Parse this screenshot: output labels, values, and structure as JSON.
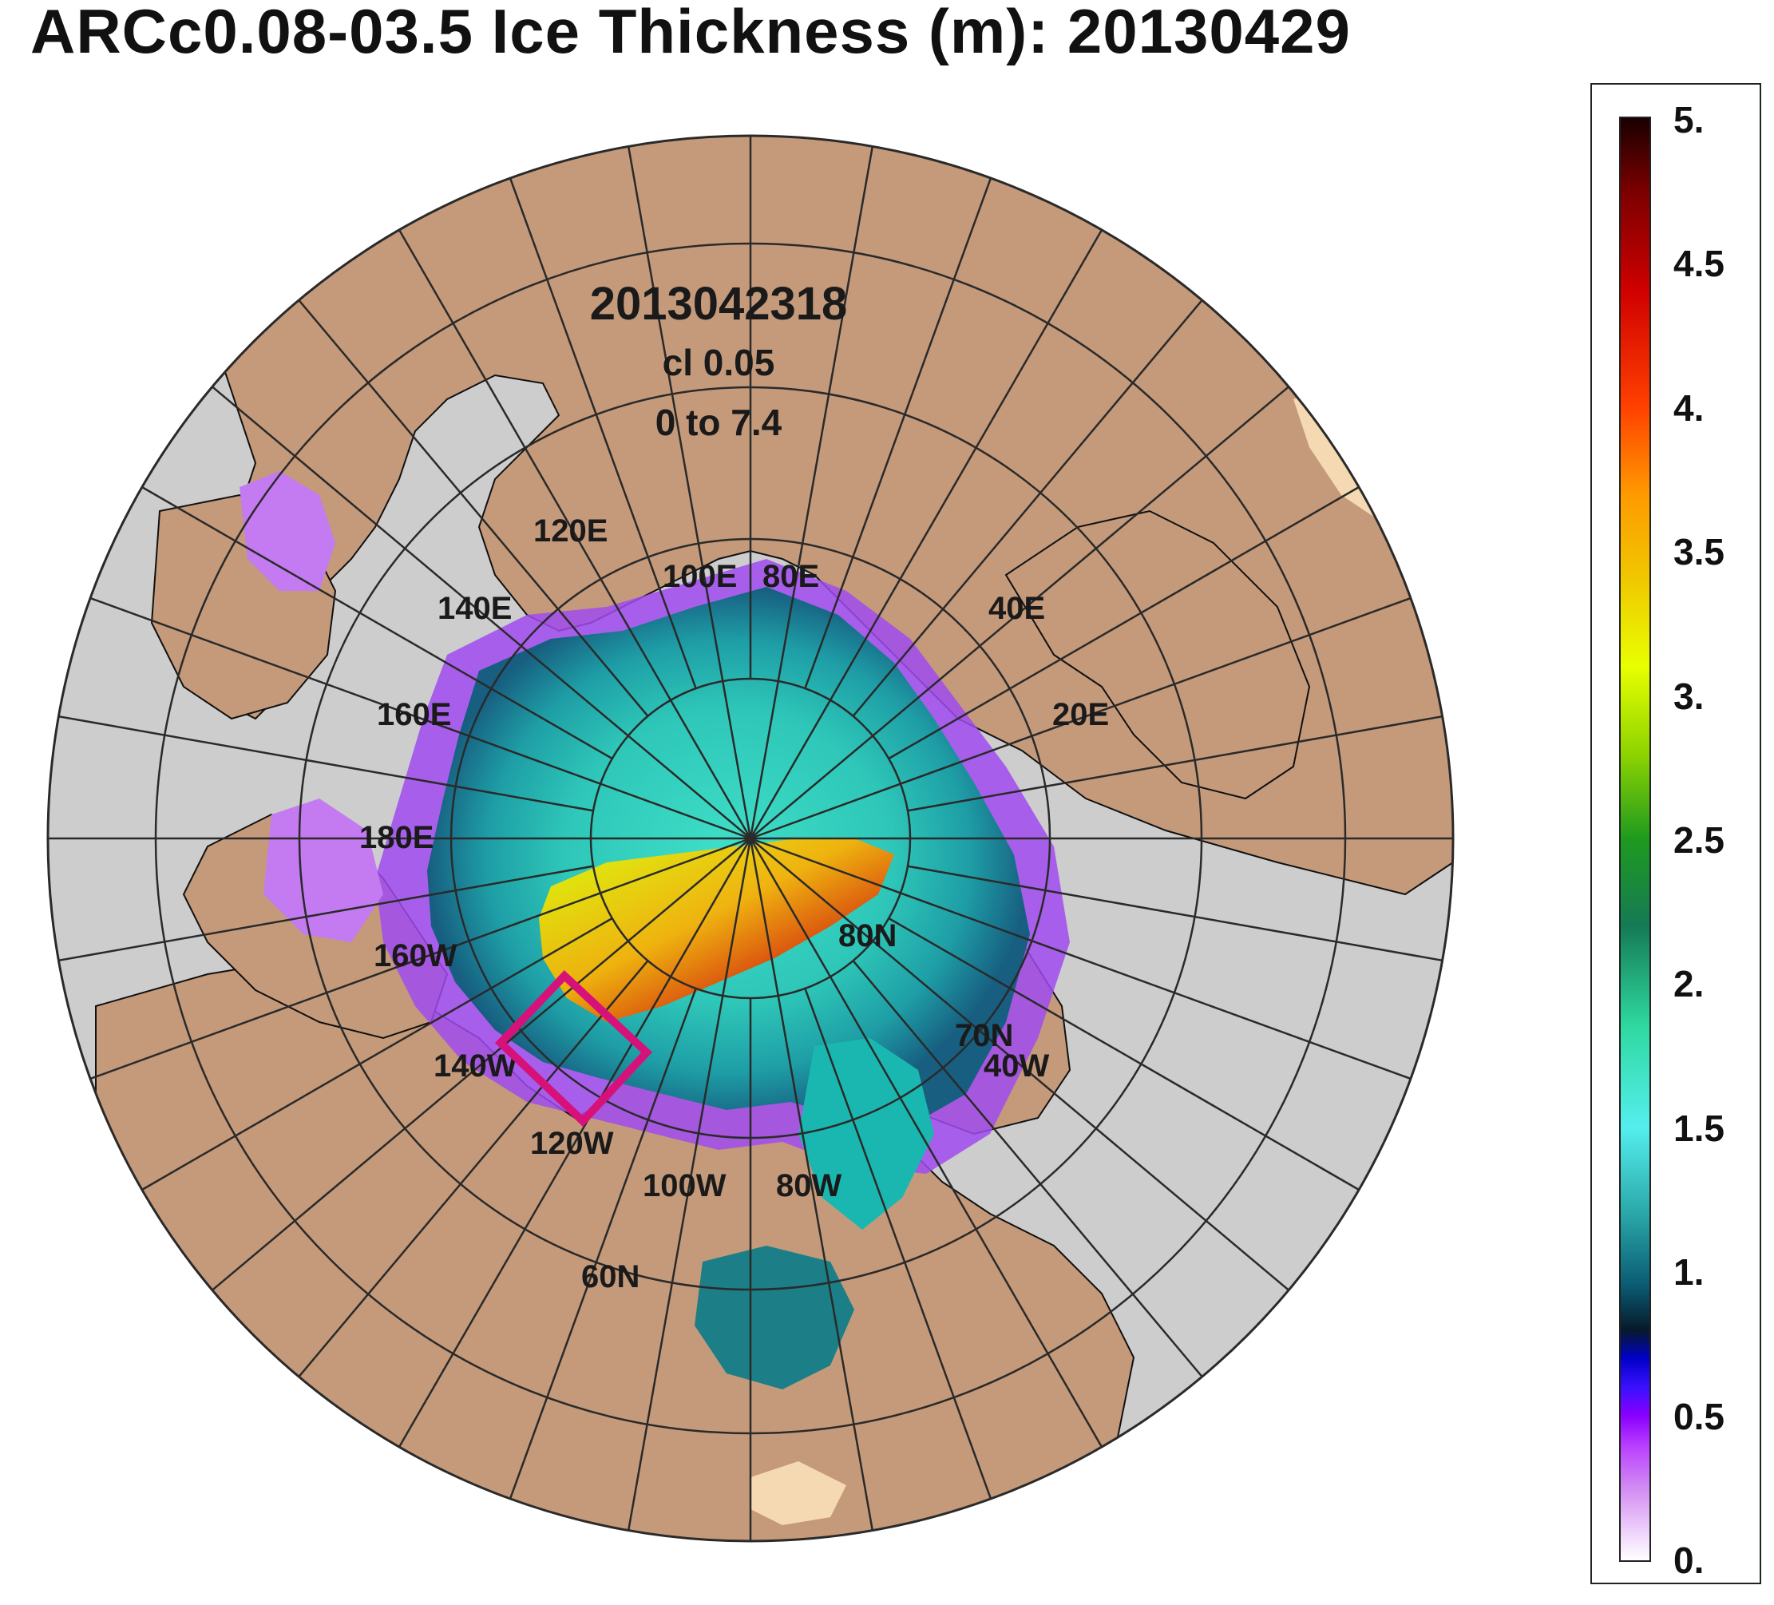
{
  "title": "ARCc0.08-03.5 Ice Thickness (m): 20130429",
  "map_text": {
    "timestamp": "2013042318",
    "contour_interval": "cl 0.05",
    "range": "0 to 7.4"
  },
  "graticule_labels": {
    "lon_120e": "120E",
    "lon_100e": "100E",
    "lon_80e": "80E",
    "lon_140e": "140E",
    "lon_40e": "40E",
    "lon_160e": "160E",
    "lon_20e": "20E",
    "lon_180e": "180E",
    "lon_160w": "160W",
    "lon_140w": "140W",
    "lon_120w": "120W",
    "lon_100w": "100W",
    "lon_80w": "80W",
    "lon_40w": "40W",
    "lat_80n": "80N",
    "lat_70n": "70N",
    "lat_60n": "60N"
  },
  "colors": {
    "land": "#c49a7b",
    "ocean_open": "#cdcdcd",
    "grid": "#2a2a2a",
    "highlight_box": "#d6127a"
  },
  "legend": {
    "ticks": [
      "5.",
      "4.5",
      "4.",
      "3.5",
      "3.",
      "2.5",
      "2.",
      "1.5",
      "1.",
      "0.5",
      "0."
    ]
  }
}
